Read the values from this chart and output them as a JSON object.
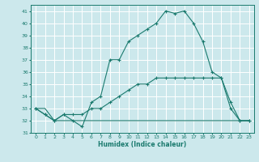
{
  "xlabel": "Humidex (Indice chaleur)",
  "bg_color": "#cce8ec",
  "grid_color": "#ffffff",
  "line_color": "#1a7a6e",
  "x_values": [
    0,
    1,
    2,
    3,
    4,
    5,
    6,
    7,
    8,
    9,
    10,
    11,
    12,
    13,
    14,
    15,
    16,
    17,
    18,
    19,
    20,
    21,
    22,
    23
  ],
  "line1": [
    33,
    32.5,
    32,
    32.5,
    32,
    31.5,
    33.5,
    34,
    37,
    37,
    38.5,
    39,
    39.5,
    40,
    41,
    40.8,
    41,
    40,
    38.5,
    36,
    35.5,
    33.5,
    32,
    32
  ],
  "line2": [
    33,
    32.5,
    32,
    32.5,
    32.5,
    32.5,
    33,
    33,
    33.5,
    34,
    34.5,
    35,
    35,
    35.5,
    35.5,
    35.5,
    35.5,
    35.5,
    35.5,
    35.5,
    35.5,
    33,
    32,
    32
  ],
  "line3": [
    33,
    33,
    32,
    32,
    32,
    32,
    32,
    32,
    32,
    32,
    32,
    32,
    32,
    32,
    32,
    32,
    32,
    32,
    32,
    32,
    32,
    32,
    32,
    32
  ],
  "xlim": [
    -0.5,
    23.5
  ],
  "ylim": [
    31,
    41.5
  ],
  "yticks": [
    31,
    32,
    33,
    34,
    35,
    36,
    37,
    38,
    39,
    40,
    41
  ],
  "xticks": [
    0,
    1,
    2,
    3,
    4,
    5,
    6,
    7,
    8,
    9,
    10,
    11,
    12,
    13,
    14,
    15,
    16,
    17,
    18,
    19,
    20,
    21,
    22,
    23
  ]
}
